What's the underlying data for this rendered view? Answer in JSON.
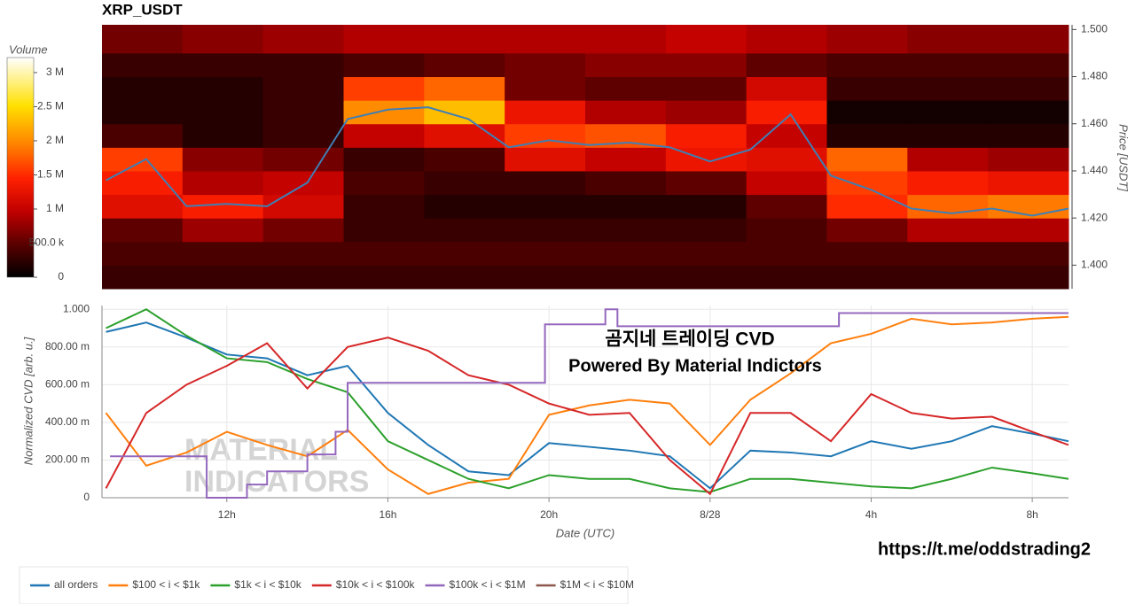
{
  "chart_data": [
    {
      "type": "heatmap",
      "title": "XRP_USDT",
      "ylabel": "Price [USDT]",
      "colorbar_title": "Volume",
      "xlim": [
        8.9,
        32.9
      ],
      "ylim": [
        1.39,
        1.502
      ],
      "yticks": [
        {
          "value": 1.4,
          "label": "1.400"
        },
        {
          "value": 1.42,
          "label": "1.420"
        },
        {
          "value": 1.44,
          "label": "1.440"
        },
        {
          "value": 1.46,
          "label": "1.460"
        },
        {
          "value": 1.48,
          "label": "1.480"
        },
        {
          "value": 1.5,
          "label": "1.500"
        }
      ],
      "x_edges": [
        8.9,
        10.9,
        12.9,
        14.9,
        16.9,
        18.9,
        20.9,
        22.9,
        24.9,
        26.9,
        28.9,
        30.9,
        32.9
      ],
      "y_edges": [
        1.39,
        1.4,
        1.41,
        1.42,
        1.43,
        1.44,
        1.45,
        1.46,
        1.47,
        1.48,
        1.49,
        1.502
      ],
      "z": [
        [
          300000,
          300000,
          300000,
          300000,
          300000,
          300000,
          300000,
          300000,
          300000,
          300000,
          300000,
          300000
        ],
        [
          400000,
          400000,
          400000,
          400000,
          400000,
          400000,
          400000,
          400000,
          400000,
          400000,
          400000,
          400000
        ],
        [
          500000,
          800000,
          600000,
          300000,
          300000,
          300000,
          300000,
          300000,
          400000,
          600000,
          900000,
          900000
        ],
        [
          1200000,
          1400000,
          1100000,
          300000,
          200000,
          200000,
          200000,
          200000,
          500000,
          1500000,
          1800000,
          1900000
        ],
        [
          1400000,
          900000,
          1000000,
          400000,
          300000,
          300000,
          400000,
          500000,
          1000000,
          1600000,
          1400000,
          1300000
        ],
        [
          1600000,
          700000,
          600000,
          300000,
          400000,
          1200000,
          1000000,
          1300000,
          1200000,
          1800000,
          900000,
          800000
        ],
        [
          400000,
          200000,
          300000,
          1000000,
          1200000,
          1600000,
          1700000,
          1400000,
          1000000,
          200000,
          200000,
          200000
        ],
        [
          200000,
          200000,
          300000,
          2000000,
          2300000,
          1300000,
          900000,
          800000,
          1400000,
          100000,
          100000,
          100000
        ],
        [
          200000,
          200000,
          300000,
          1600000,
          1800000,
          600000,
          500000,
          500000,
          1100000,
          300000,
          300000,
          300000
        ],
        [
          300000,
          300000,
          300000,
          400000,
          500000,
          600000,
          700000,
          700000,
          500000,
          400000,
          400000,
          400000
        ],
        [
          600000,
          700000,
          800000,
          900000,
          900000,
          900000,
          900000,
          1000000,
          900000,
          800000,
          700000,
          700000
        ]
      ],
      "zlim": [
        0,
        3220000
      ],
      "zticks": [
        0,
        {
          "value": 500000,
          "label": "500.0 k"
        },
        {
          "value": 1000000,
          "label": "1 M"
        },
        {
          "value": 1500000,
          "label": "1.5 M"
        },
        {
          "value": 2000000,
          "label": "2 M"
        },
        {
          "value": 2500000,
          "label": "2.5 M"
        },
        {
          "value": 3000000,
          "label": "3 M"
        }
      ],
      "line": {
        "color": "#3f7fb5",
        "x": [
          9,
          10,
          11,
          12,
          13,
          14,
          15,
          16,
          17,
          18,
          19,
          20,
          21,
          22,
          23,
          24,
          25,
          26,
          27,
          28,
          29,
          30,
          31,
          32,
          32.9
        ],
        "values": [
          1.436,
          1.445,
          1.425,
          1.426,
          1.425,
          1.435,
          1.462,
          1.466,
          1.467,
          1.462,
          1.45,
          1.453,
          1.451,
          1.452,
          1.45,
          1.444,
          1.449,
          1.464,
          1.438,
          1.432,
          1.424,
          1.422,
          1.424,
          1.421,
          1.424
        ]
      }
    },
    {
      "type": "line",
      "xlabel": "Date (UTC)",
      "ylabel": "Normalized CVD [arb. u.]",
      "xlim": [
        8.9,
        32.9
      ],
      "ylim": [
        0,
        1.02
      ],
      "xticks": [
        {
          "value": 12,
          "label": "12h"
        },
        {
          "value": 16,
          "label": "16h"
        },
        {
          "value": 20,
          "label": "20h"
        },
        {
          "value": 24,
          "label": "8/28"
        },
        {
          "value": 28,
          "label": "4h"
        },
        {
          "value": 32,
          "label": "8h"
        }
      ],
      "yticks": [
        0,
        {
          "value": 0.2,
          "label": "200.00 m"
        },
        {
          "value": 0.4,
          "label": "400.00 m"
        },
        {
          "value": 0.6,
          "label": "600.00 m"
        },
        {
          "value": 0.8,
          "label": "800.00 m"
        },
        {
          "value": 1,
          "label": "1.000"
        }
      ],
      "grid": true,
      "x": [
        9,
        10,
        11,
        12,
        13,
        14,
        15,
        16,
        17,
        18,
        19,
        20,
        21,
        22,
        23,
        24,
        25,
        26,
        27,
        28,
        29,
        30,
        31,
        32,
        32.9
      ],
      "series": [
        {
          "name": "all orders",
          "color": "#1f77b4",
          "values": [
            0.88,
            0.93,
            0.85,
            0.76,
            0.74,
            0.65,
            0.7,
            0.45,
            0.28,
            0.14,
            0.12,
            0.29,
            0.27,
            0.25,
            0.22,
            0.05,
            0.25,
            0.24,
            0.22,
            0.3,
            0.26,
            0.3,
            0.38,
            0.34,
            0.3
          ]
        },
        {
          "name": "$100 < i < $1k",
          "color": "#ff7f0e",
          "values": [
            0.45,
            0.17,
            0.24,
            0.35,
            0.28,
            0.22,
            0.36,
            0.15,
            0.02,
            0.08,
            0.1,
            0.44,
            0.49,
            0.52,
            0.5,
            0.28,
            0.52,
            0.66,
            0.82,
            0.87,
            0.95,
            0.92,
            0.93,
            0.95,
            0.96
          ]
        },
        {
          "name": "$1k < i < $10k",
          "color": "#2ca02c",
          "values": [
            0.9,
            1.0,
            0.86,
            0.74,
            0.72,
            0.63,
            0.56,
            0.3,
            0.2,
            0.1,
            0.05,
            0.12,
            0.1,
            0.1,
            0.05,
            0.03,
            0.1,
            0.1,
            0.08,
            0.06,
            0.05,
            0.1,
            0.16,
            0.13,
            0.1
          ]
        },
        {
          "name": "$10k < i < $100k",
          "color": "#d62728",
          "values": [
            0.05,
            0.45,
            0.6,
            0.7,
            0.82,
            0.58,
            0.8,
            0.85,
            0.78,
            0.65,
            0.6,
            0.5,
            0.44,
            0.45,
            0.2,
            0.02,
            0.45,
            0.45,
            0.3,
            0.55,
            0.45,
            0.42,
            0.43,
            0.35,
            0.28
          ]
        },
        {
          "name": "$100k < i < $1M",
          "color": "#9467bd",
          "x": [
            9.1,
            11.5,
            11.5,
            12.5,
            12.5,
            13,
            13,
            14,
            14,
            14.7,
            14.7,
            15,
            15,
            19.9,
            19.9,
            21.4,
            21.4,
            21.7,
            21.7,
            27.2,
            27.2,
            32.9
          ],
          "values": [
            0.22,
            0.22,
            0,
            0,
            0.07,
            0.07,
            0.14,
            0.14,
            0.23,
            0.23,
            0.35,
            0.35,
            0.61,
            0.61,
            0.92,
            0.92,
            1.0,
            1.0,
            0.91,
            0.91,
            0.98,
            0.98
          ]
        },
        {
          "name": "$1M < i < $10M",
          "color": "#8c564b"
        }
      ],
      "annotations": [
        "곰지네 트레이딩 CVD",
        "Powered By Material Indictors",
        "https://t.me/oddstrading2",
        "MATERIAL",
        "INDICATORS"
      ]
    }
  ]
}
